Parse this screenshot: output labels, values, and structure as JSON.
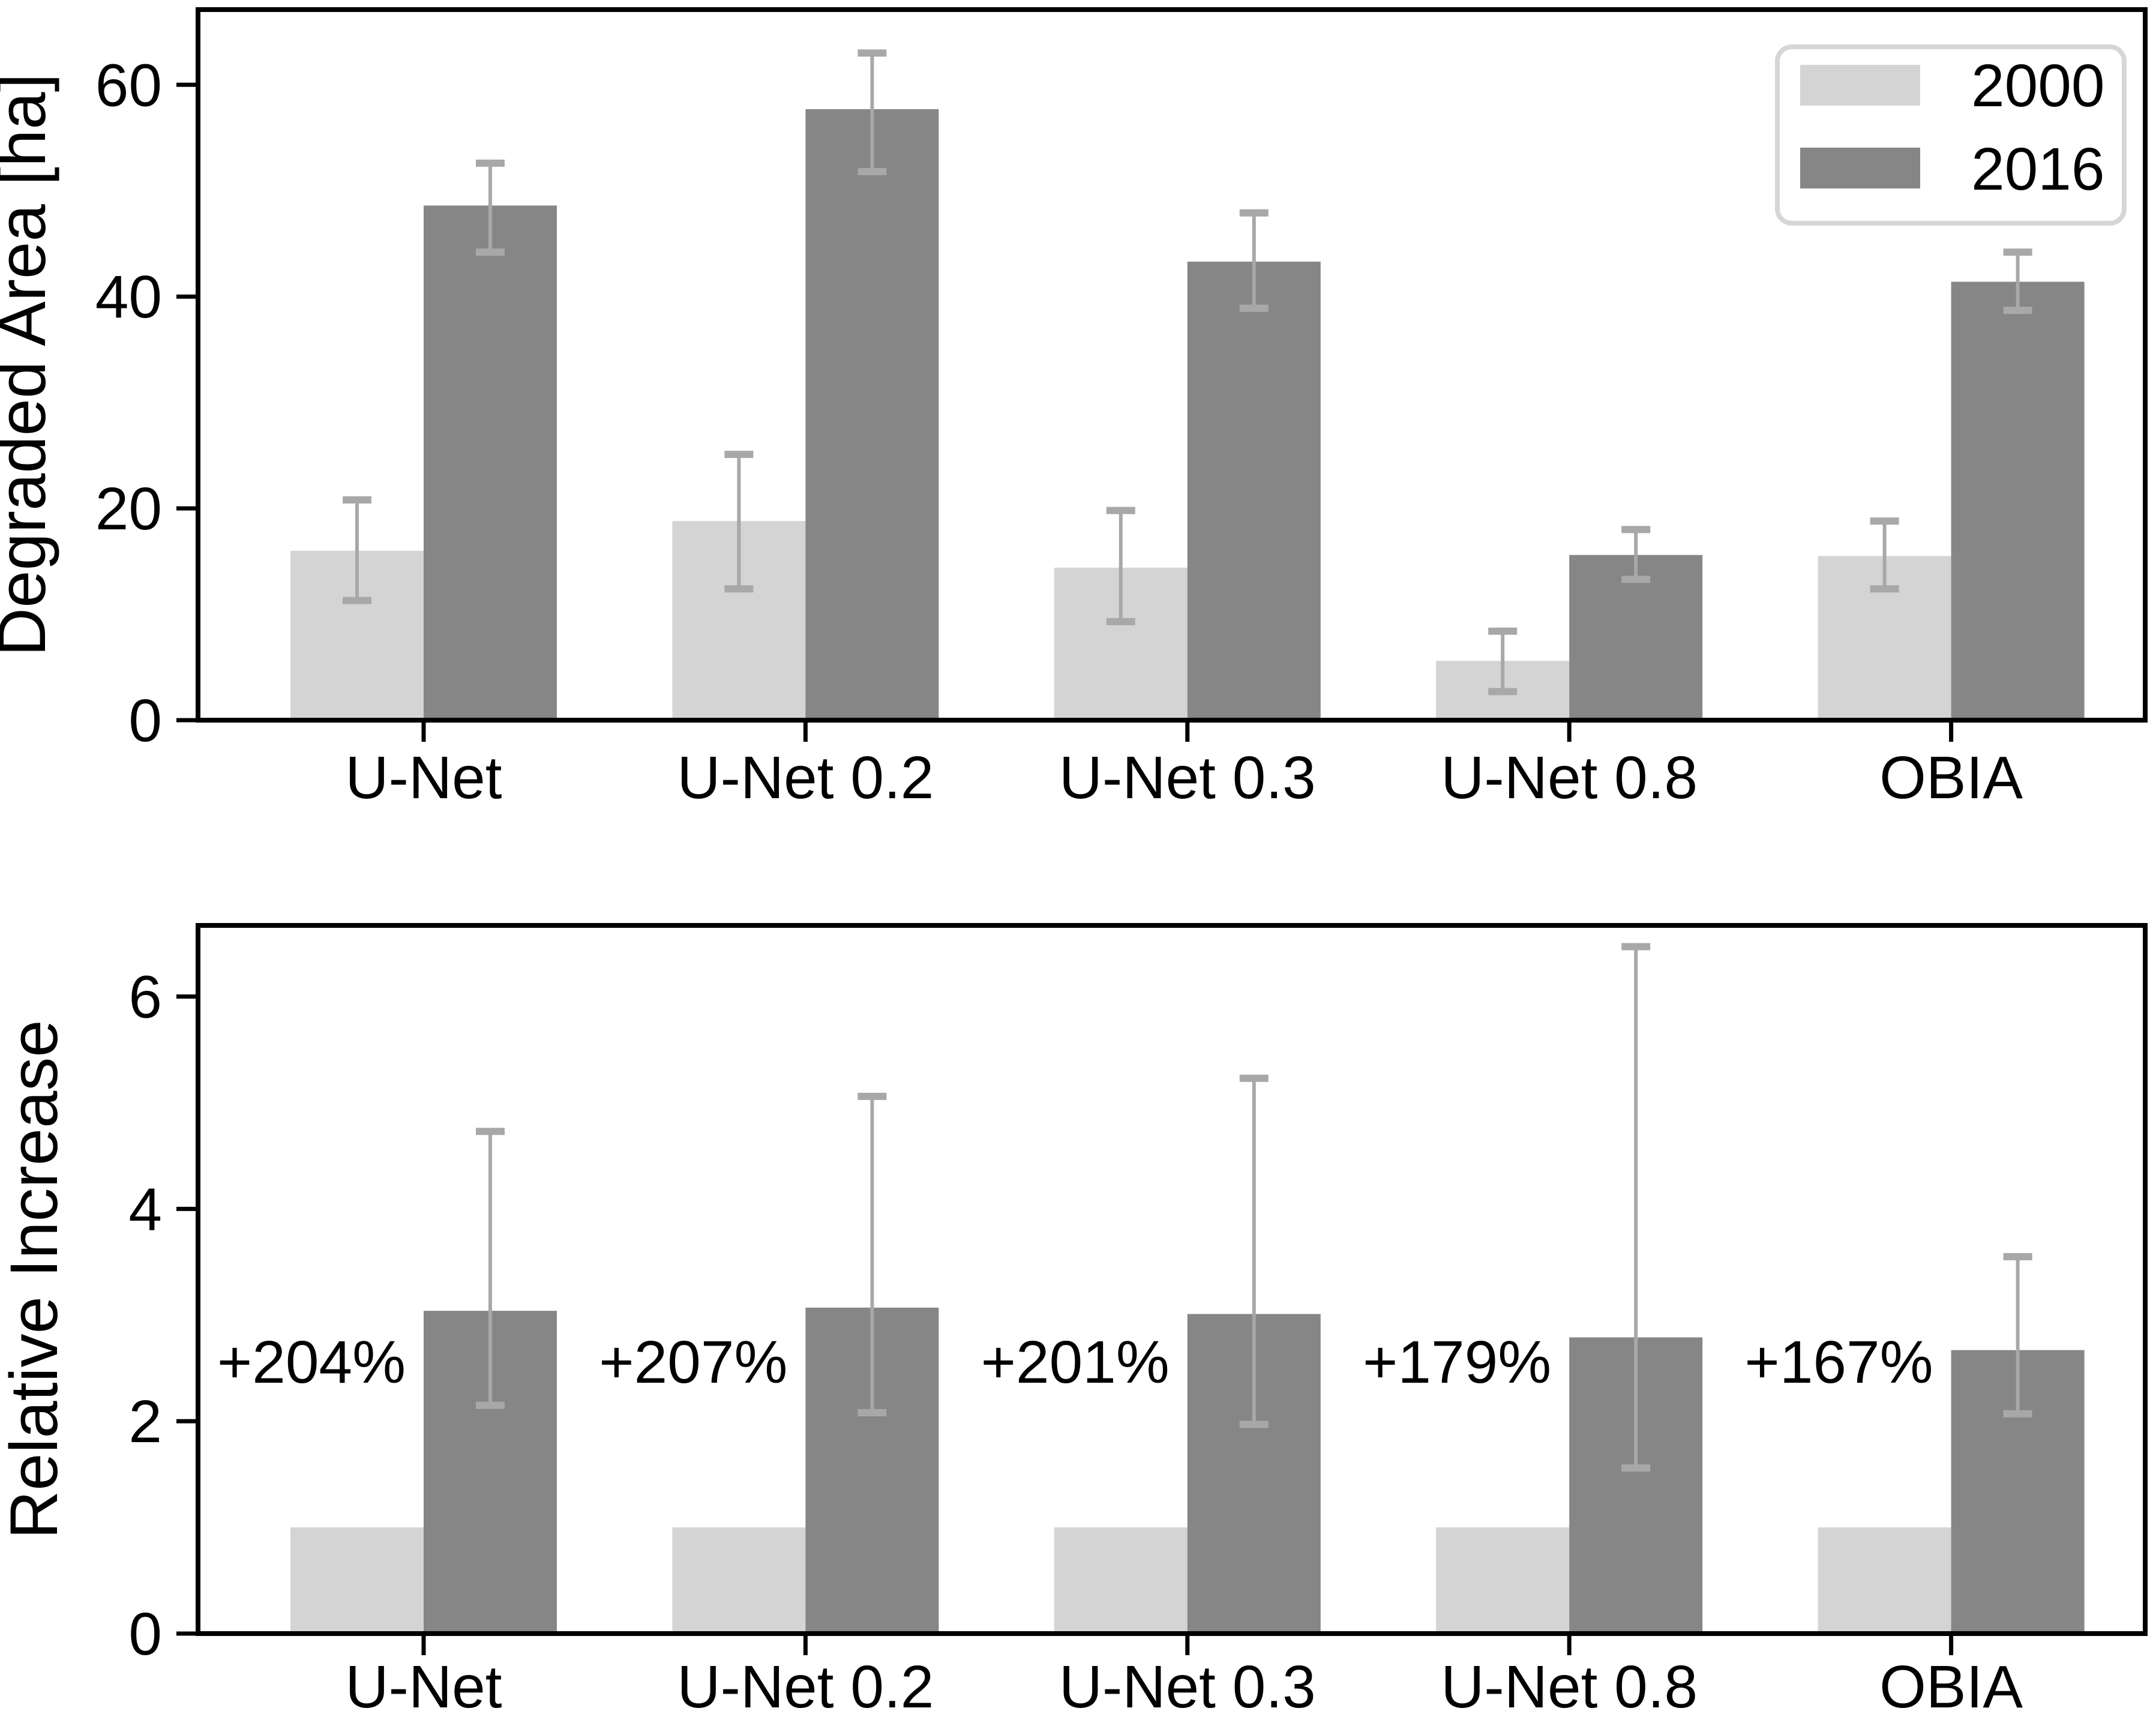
{
  "figure": {
    "description": "Two stacked grouped bar charts comparing degraded area in 2000 vs 2016 for different segmentation methods",
    "background": "#ffffff"
  },
  "styles": {
    "bar_color_2000": "#d4d4d4",
    "bar_color_2016": "#868686",
    "error_bar_color": "#a8a8a8",
    "axis_color": "#000000",
    "legend_border_color": "#d6d6d6",
    "legend_background": "#ffffff"
  },
  "chart_data": [
    {
      "type": "bar",
      "title": "",
      "xlabel": "",
      "ylabel": "Degraded Area [ha]",
      "categories": [
        "U-Net",
        "U-Net 0.2",
        "U-Net 0.3",
        "U-Net 0.8",
        "OBIA"
      ],
      "series": [
        {
          "name": "2000",
          "color": "#d4d4d4",
          "values": [
            16.0,
            18.8,
            14.4,
            5.6,
            15.5
          ],
          "err_lo": [
            11.3,
            12.4,
            9.3,
            2.7,
            12.4
          ],
          "err_hi": [
            20.8,
            25.1,
            19.8,
            8.4,
            18.8
          ]
        },
        {
          "name": "2016",
          "color": "#868686",
          "values": [
            48.6,
            57.7,
            43.3,
            15.6,
            41.4
          ],
          "err_lo": [
            44.2,
            51.8,
            38.9,
            13.3,
            38.7
          ],
          "err_hi": [
            52.6,
            63.0,
            47.9,
            18.0,
            44.2
          ]
        }
      ],
      "yticks": [
        0,
        20,
        40,
        60
      ],
      "ylim": [
        0,
        67.1
      ],
      "grid": false,
      "legend": {
        "position": "top-right",
        "entries": [
          {
            "label": "2000",
            "color": "#d4d4d4"
          },
          {
            "label": "2016",
            "color": "#868686"
          }
        ]
      }
    },
    {
      "type": "bar",
      "title": "",
      "xlabel": "",
      "ylabel": "Relative Increase",
      "categories": [
        "U-Net",
        "U-Net 0.2",
        "U-Net 0.3",
        "U-Net 0.8",
        "OBIA"
      ],
      "series": [
        {
          "name": "2000",
          "color": "#d4d4d4",
          "values": [
            1.0,
            1.0,
            1.0,
            1.0,
            1.0
          ],
          "err_lo": null,
          "err_hi": null
        },
        {
          "name": "2016",
          "color": "#868686",
          "values": [
            3.04,
            3.07,
            3.01,
            2.79,
            2.67
          ],
          "err_lo": [
            2.15,
            2.08,
            1.97,
            1.56,
            2.07
          ],
          "err_hi": [
            4.73,
            5.06,
            5.23,
            6.47,
            3.55
          ]
        }
      ],
      "yticks": [
        0,
        2,
        4,
        6
      ],
      "ylim": [
        0,
        6.67
      ],
      "grid": false,
      "legend": null,
      "annotations": [
        {
          "text": "+204%",
          "category_index": 0
        },
        {
          "text": "+207%",
          "category_index": 1
        },
        {
          "text": "+201%",
          "category_index": 2
        },
        {
          "text": "+179%",
          "category_index": 3
        },
        {
          "text": "+167%",
          "category_index": 4
        }
      ]
    }
  ]
}
